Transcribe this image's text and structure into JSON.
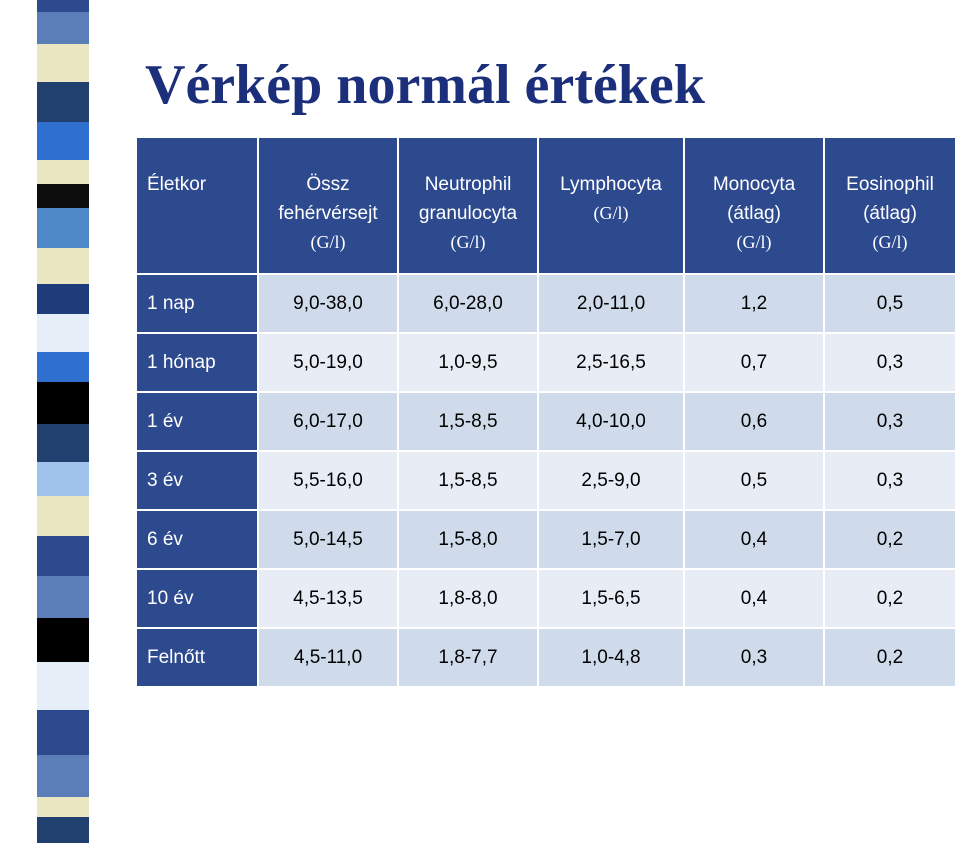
{
  "title": "Vérkép normál értékek",
  "colors": {
    "title": "#1b2f7a",
    "header_bg": "#2e4a8f",
    "row_light": "#e8edf5",
    "row_dark": "#cfdbea",
    "stripe": [
      "#2e4a8f",
      "#5b7db8",
      "#e9e6c1",
      "#22406f",
      "#2e6fd0",
      "#e9e6c1",
      "#0d0d0d",
      "#4f88c6",
      "#e9e6c1",
      "#1e3c7a",
      "#e6eef7",
      "#2e6fd0",
      "#000000",
      "#22406f",
      "#9fc3ea",
      "#e9e6c1",
      "#2e4a8f",
      "#5b7db8",
      "#000000",
      "#e6eef7"
    ]
  },
  "table": {
    "headers": [
      {
        "lines": [
          "Életkor"
        ],
        "unit": ""
      },
      {
        "lines": [
          "Össz",
          "fehérvérsejt"
        ],
        "unit": "(G/l)"
      },
      {
        "lines": [
          "Neutrophil",
          "granulocyta"
        ],
        "unit": "(G/l)"
      },
      {
        "lines": [
          "Lymphocyta"
        ],
        "unit": "(G/l)"
      },
      {
        "lines": [
          "Monocyta",
          "(átlag)"
        ],
        "unit": "(G/l)"
      },
      {
        "lines": [
          "Eosinophil",
          "(átlag)"
        ],
        "unit": "(G/l)"
      }
    ],
    "rows": [
      {
        "age": "1 nap",
        "values": [
          "9,0-38,0",
          "6,0-28,0",
          "2,0-11,0",
          "1,2",
          "0,5"
        ]
      },
      {
        "age": "1 hónap",
        "values": [
          "5,0-19,0",
          "1,0-9,5",
          "2,5-16,5",
          "0,7",
          "0,3"
        ]
      },
      {
        "age": "1 év",
        "values": [
          "6,0-17,0",
          "1,5-8,5",
          "4,0-10,0",
          "0,6",
          "0,3"
        ]
      },
      {
        "age": "3 év",
        "values": [
          "5,5-16,0",
          "1,5-8,5",
          "2,5-9,0",
          "0,5",
          "0,3"
        ]
      },
      {
        "age": "6 év",
        "values": [
          "5,0-14,5",
          "1,5-8,0",
          "1,5-7,0",
          "0,4",
          "0,2"
        ]
      },
      {
        "age": "10 év",
        "values": [
          "4,5-13,5",
          "1,8-8,0",
          "1,5-6,5",
          "0,4",
          "0,2"
        ]
      },
      {
        "age": "Felnőtt",
        "values": [
          "4,5-11,0",
          "1,8-7,7",
          "1,0-4,8",
          "0,3",
          "0,2"
        ]
      }
    ]
  }
}
